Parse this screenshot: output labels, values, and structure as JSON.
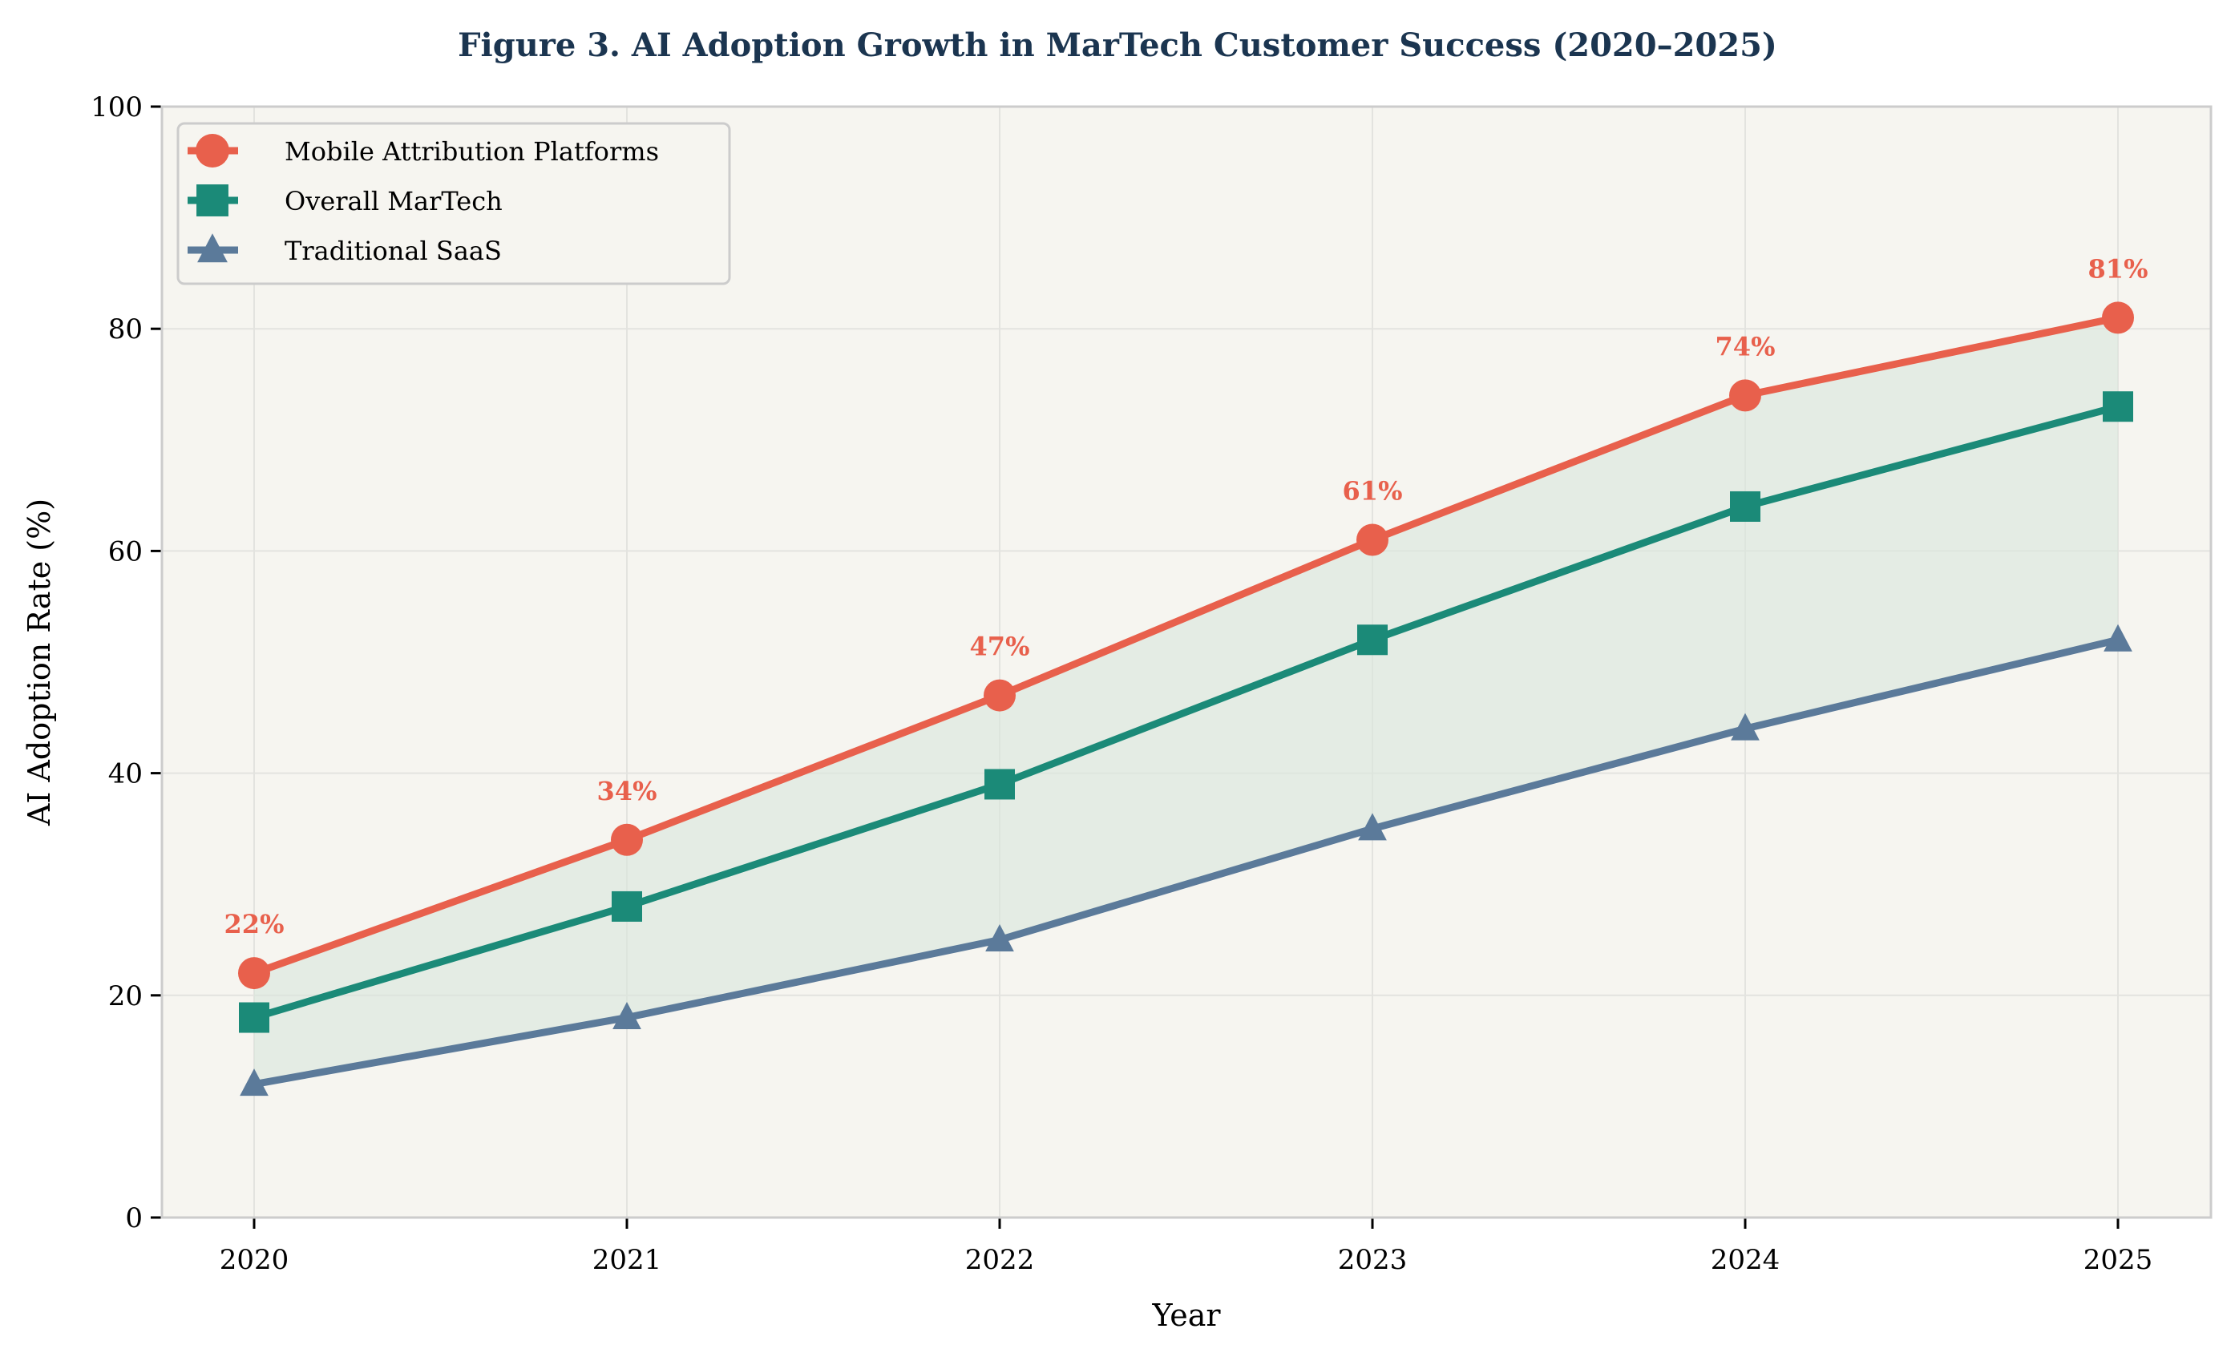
{
  "chart_data": {
    "type": "line",
    "title": "Figure 3. AI Adoption Growth in MarTech Customer Success (2020–2025)",
    "xlabel": "Year",
    "ylabel": "AI Adoption Rate (%)",
    "x": [
      2020,
      2021,
      2022,
      2023,
      2024,
      2025
    ],
    "x_tick_labels": [
      "2020",
      "2021",
      "2022",
      "2023",
      "2024",
      "2025"
    ],
    "ylim": [
      0,
      100
    ],
    "y_ticks": [
      0,
      20,
      40,
      60,
      80,
      100
    ],
    "y_tick_labels": [
      "0",
      "20",
      "40",
      "60",
      "80",
      "100"
    ],
    "grid": true,
    "legend_placement": "top-left",
    "fill_between": [
      "Mobile Attribution Platforms",
      "Traditional SaaS"
    ],
    "fill_color": "#d8e6dc",
    "background_color": "#f6f5f0",
    "title_color": "#1b3550",
    "series": [
      {
        "name": "Mobile Attribution Platforms",
        "values": [
          22,
          34,
          47,
          61,
          74,
          81
        ],
        "color": "#e8604c",
        "marker": "circle",
        "data_labels": [
          "22%",
          "34%",
          "47%",
          "61%",
          "74%",
          "81%"
        ]
      },
      {
        "name": "Overall MarTech",
        "values": [
          18,
          28,
          39,
          52,
          64,
          73
        ],
        "color": "#1b8a78",
        "marker": "square"
      },
      {
        "name": "Traditional SaaS",
        "values": [
          12,
          18,
          25,
          35,
          44,
          52
        ],
        "color": "#5b7a9a",
        "marker": "triangle"
      }
    ]
  }
}
